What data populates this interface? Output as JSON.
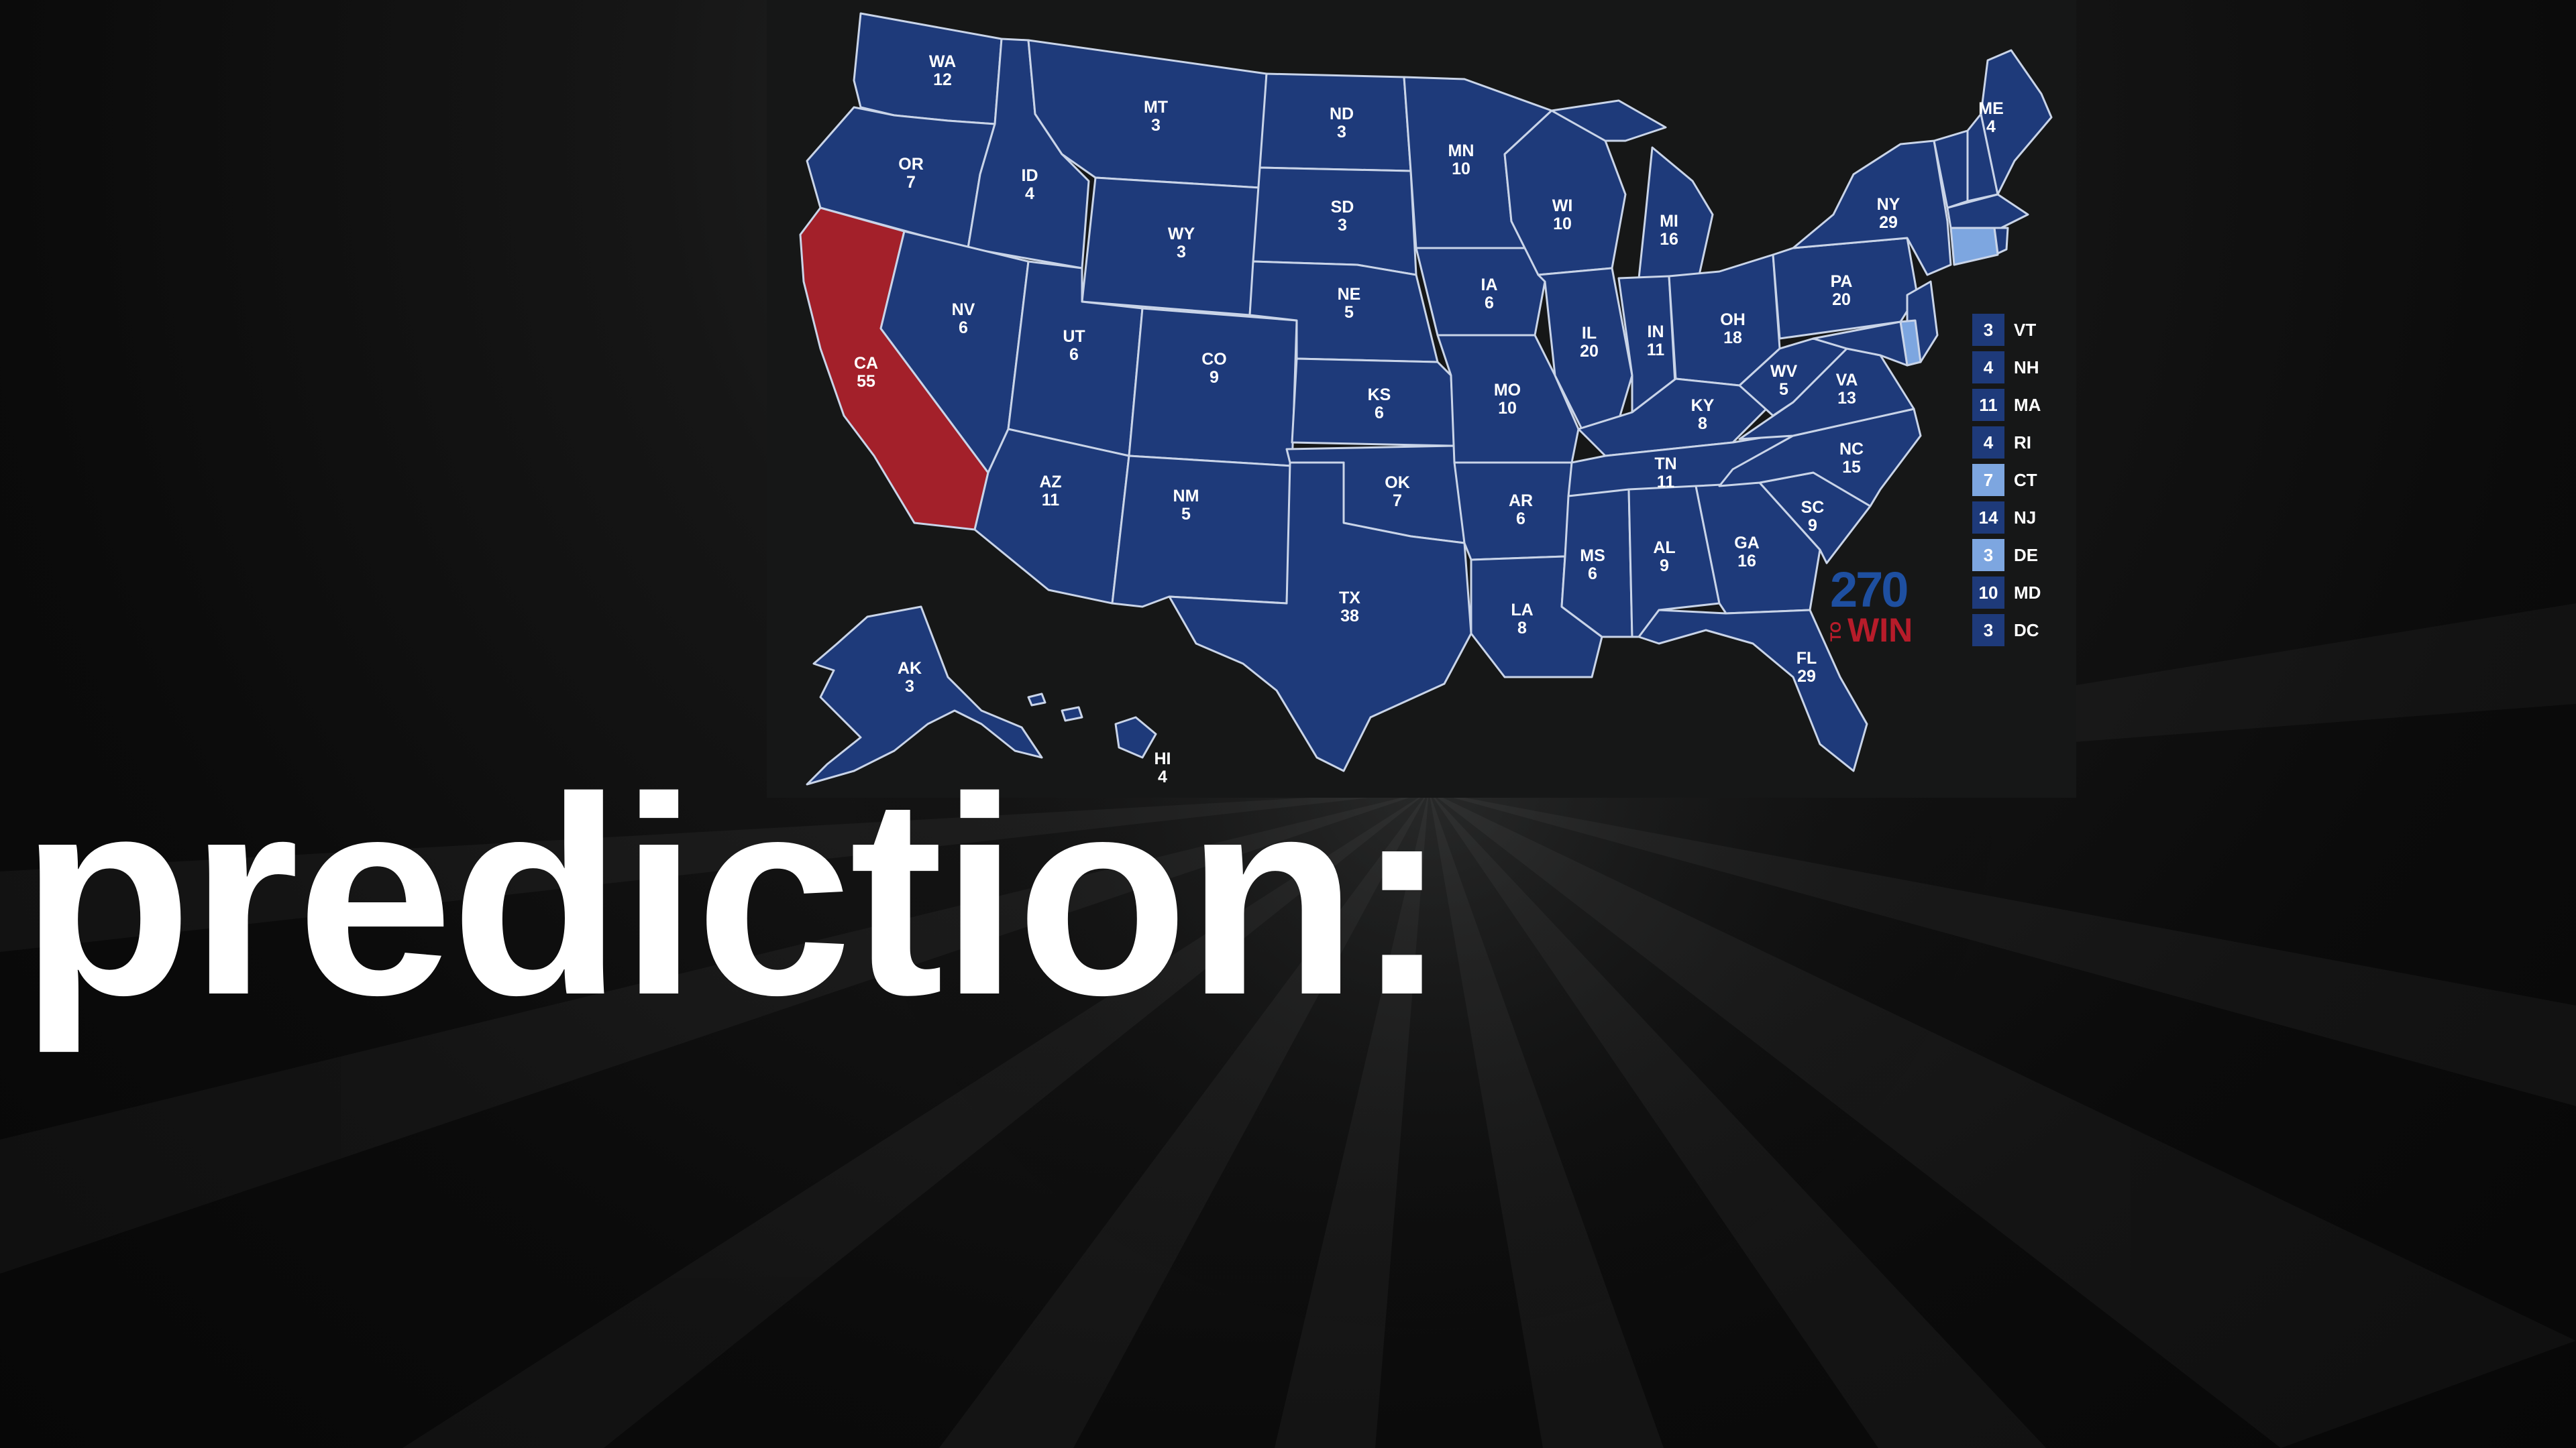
{
  "caption": "prediction:",
  "colors": {
    "background": "#0b0b0b",
    "safe_blue": "#1e3a7a",
    "lean_blue": "#7da6e0",
    "red": "#a3202a",
    "border": "#c9d4e8"
  },
  "map": {
    "logo": {
      "number": "270",
      "to": "TO",
      "win": "WIN"
    },
    "states": [
      {
        "abbr": "WA",
        "ev": "12",
        "party": "safe_blue"
      },
      {
        "abbr": "OR",
        "ev": "7",
        "party": "safe_blue"
      },
      {
        "abbr": "CA",
        "ev": "55",
        "party": "red"
      },
      {
        "abbr": "ID",
        "ev": "4",
        "party": "safe_blue"
      },
      {
        "abbr": "NV",
        "ev": "6",
        "party": "safe_blue"
      },
      {
        "abbr": "MT",
        "ev": "3",
        "party": "safe_blue"
      },
      {
        "abbr": "WY",
        "ev": "3",
        "party": "safe_blue"
      },
      {
        "abbr": "UT",
        "ev": "6",
        "party": "safe_blue"
      },
      {
        "abbr": "AZ",
        "ev": "11",
        "party": "safe_blue"
      },
      {
        "abbr": "CO",
        "ev": "9",
        "party": "safe_blue"
      },
      {
        "abbr": "NM",
        "ev": "5",
        "party": "safe_blue"
      },
      {
        "abbr": "ND",
        "ev": "3",
        "party": "safe_blue"
      },
      {
        "abbr": "SD",
        "ev": "3",
        "party": "safe_blue"
      },
      {
        "abbr": "NE",
        "ev": "5",
        "party": "safe_blue"
      },
      {
        "abbr": "KS",
        "ev": "6",
        "party": "safe_blue"
      },
      {
        "abbr": "OK",
        "ev": "7",
        "party": "safe_blue"
      },
      {
        "abbr": "TX",
        "ev": "38",
        "party": "safe_blue"
      },
      {
        "abbr": "MN",
        "ev": "10",
        "party": "safe_blue"
      },
      {
        "abbr": "IA",
        "ev": "6",
        "party": "safe_blue"
      },
      {
        "abbr": "MO",
        "ev": "10",
        "party": "safe_blue"
      },
      {
        "abbr": "AR",
        "ev": "6",
        "party": "safe_blue"
      },
      {
        "abbr": "LA",
        "ev": "8",
        "party": "safe_blue"
      },
      {
        "abbr": "WI",
        "ev": "10",
        "party": "safe_blue"
      },
      {
        "abbr": "IL",
        "ev": "20",
        "party": "safe_blue"
      },
      {
        "abbr": "MI",
        "ev": "16",
        "party": "safe_blue"
      },
      {
        "abbr": "IN",
        "ev": "11",
        "party": "safe_blue"
      },
      {
        "abbr": "OH",
        "ev": "18",
        "party": "safe_blue"
      },
      {
        "abbr": "KY",
        "ev": "8",
        "party": "safe_blue"
      },
      {
        "abbr": "TN",
        "ev": "11",
        "party": "safe_blue"
      },
      {
        "abbr": "MS",
        "ev": "6",
        "party": "safe_blue"
      },
      {
        "abbr": "AL",
        "ev": "9",
        "party": "safe_blue"
      },
      {
        "abbr": "GA",
        "ev": "16",
        "party": "safe_blue"
      },
      {
        "abbr": "FL",
        "ev": "29",
        "party": "safe_blue"
      },
      {
        "abbr": "SC",
        "ev": "9",
        "party": "safe_blue"
      },
      {
        "abbr": "NC",
        "ev": "15",
        "party": "safe_blue"
      },
      {
        "abbr": "VA",
        "ev": "13",
        "party": "safe_blue"
      },
      {
        "abbr": "WV",
        "ev": "5",
        "party": "safe_blue"
      },
      {
        "abbr": "PA",
        "ev": "20",
        "party": "safe_blue"
      },
      {
        "abbr": "NY",
        "ev": "29",
        "party": "safe_blue"
      },
      {
        "abbr": "ME",
        "ev": "4",
        "party": "safe_blue"
      },
      {
        "abbr": "AK",
        "ev": "3",
        "party": "safe_blue"
      },
      {
        "abbr": "HI",
        "ev": "4",
        "party": "safe_blue"
      }
    ],
    "legend": [
      {
        "ev": "3",
        "abbr": "VT",
        "party": "safe_blue"
      },
      {
        "ev": "4",
        "abbr": "NH",
        "party": "safe_blue"
      },
      {
        "ev": "11",
        "abbr": "MA",
        "party": "safe_blue"
      },
      {
        "ev": "4",
        "abbr": "RI",
        "party": "safe_blue"
      },
      {
        "ev": "7",
        "abbr": "CT",
        "party": "lean_blue"
      },
      {
        "ev": "14",
        "abbr": "NJ",
        "party": "safe_blue"
      },
      {
        "ev": "3",
        "abbr": "DE",
        "party": "lean_blue"
      },
      {
        "ev": "10",
        "abbr": "MD",
        "party": "safe_blue"
      },
      {
        "ev": "3",
        "abbr": "DC",
        "party": "safe_blue"
      }
    ]
  }
}
